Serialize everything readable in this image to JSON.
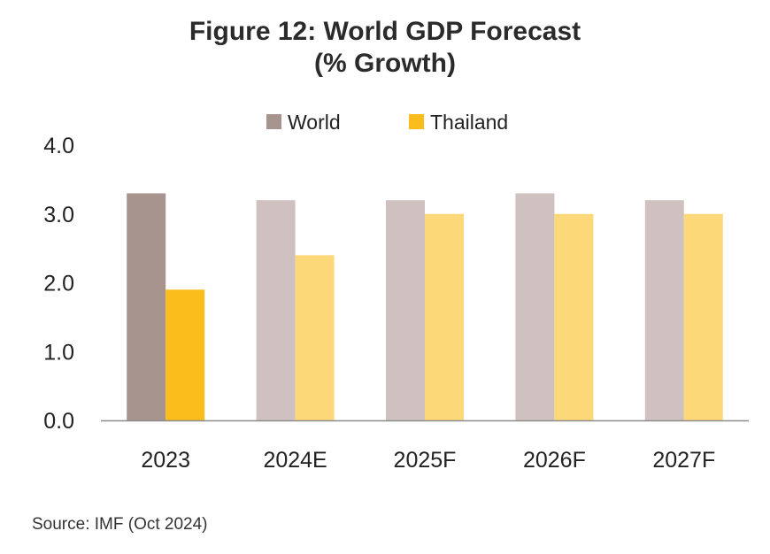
{
  "title": "Figure 12:  World GDP Forecast",
  "subtitle": "(% Growth)",
  "source": "Source: IMF (Oct 2024)",
  "chart_data": {
    "type": "bar",
    "categories": [
      "2023",
      "2024E",
      "2025F",
      "2026F",
      "2027F"
    ],
    "series": [
      {
        "name": "World",
        "values": [
          3.3,
          3.2,
          3.2,
          3.3,
          3.2
        ],
        "colors": [
          "#a8948f",
          "#cfc1bf",
          "#cfc1bf",
          "#cfc1bf",
          "#cfc1bf"
        ]
      },
      {
        "name": "Thailand",
        "values": [
          1.9,
          2.4,
          3.0,
          3.0,
          3.0
        ],
        "colors": [
          "#fbbd1c",
          "#fcd879",
          "#fcd879",
          "#fcd879",
          "#fcd879"
        ]
      }
    ],
    "legend": [
      {
        "name": "World",
        "color": "#a8948f"
      },
      {
        "name": "Thailand",
        "color": "#fbbd1c"
      }
    ],
    "ylim": [
      0,
      4
    ],
    "yticks": [
      "0.0",
      "1.0",
      "2.0",
      "3.0",
      "4.0"
    ],
    "grid": false,
    "legend_position": "top"
  }
}
